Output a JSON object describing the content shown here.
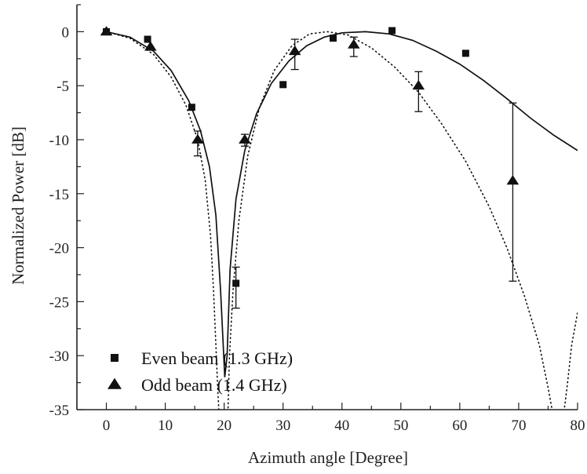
{
  "chart_data": {
    "type": "scatter",
    "xlabel": "Azimuth angle [Degree]",
    "ylabel": "Normalized Power [dB]",
    "xlim": [
      -5,
      80
    ],
    "ylim": [
      -35,
      2.5
    ],
    "xticks": [
      0,
      10,
      20,
      30,
      40,
      50,
      60,
      70,
      80
    ],
    "yticks": [
      0,
      -5,
      -10,
      -15,
      -20,
      -25,
      -30,
      -35
    ],
    "grid": false,
    "legend_position": "bottom-left",
    "legend": [
      "Even beam (1.3 GHz)",
      "Odd beam (1.4 GHz)"
    ],
    "series": [
      {
        "name": "Even beam (1.3 GHz)",
        "marker": "square",
        "points": [
          {
            "x": 0,
            "y": 0
          },
          {
            "x": 7,
            "y": -0.7
          },
          {
            "x": 14.5,
            "y": -7.0
          },
          {
            "x": 22,
            "y": -23.3,
            "err_low": -25.6,
            "err_high": -21.8
          },
          {
            "x": 30,
            "y": -4.9
          },
          {
            "x": 38.5,
            "y": -0.6
          },
          {
            "x": 48.5,
            "y": 0.1
          },
          {
            "x": 61,
            "y": -2.0
          }
        ]
      },
      {
        "name": "Odd beam (1.4 GHz)",
        "marker": "triangle",
        "points": [
          {
            "x": 0,
            "y": 0
          },
          {
            "x": 7.5,
            "y": -1.4
          },
          {
            "x": 15.5,
            "y": -10.0,
            "err_low": -11.5,
            "err_high": -9.2
          },
          {
            "x": 23.5,
            "y": -10.0,
            "err_low": -10.6,
            "err_high": -9.5
          },
          {
            "x": 32,
            "y": -1.8,
            "err_low": -3.5,
            "err_high": -0.7
          },
          {
            "x": 42,
            "y": -1.2,
            "err_low": -2.3,
            "err_high": -0.5
          },
          {
            "x": 53,
            "y": -5.0,
            "err_low": -7.4,
            "err_high": -3.7
          },
          {
            "x": 69,
            "y": -13.8,
            "err_low": -23.1,
            "err_high": -6.6
          }
        ]
      },
      {
        "name": "",
        "style": "solid",
        "points": [
          {
            "x": 0,
            "y": 0
          },
          {
            "x": 4,
            "y": -0.5
          },
          {
            "x": 8,
            "y": -1.8
          },
          {
            "x": 11,
            "y": -3.6
          },
          {
            "x": 14,
            "y": -6.4
          },
          {
            "x": 16,
            "y": -9.2
          },
          {
            "x": 17.5,
            "y": -12.5
          },
          {
            "x": 18.6,
            "y": -17.0
          },
          {
            "x": 19.4,
            "y": -24.0
          },
          {
            "x": 19.8,
            "y": -28.5
          },
          {
            "x": 20.1,
            "y": -32.0
          },
          {
            "x": 20.5,
            "y": -30.0
          },
          {
            "x": 21,
            "y": -22.0
          },
          {
            "x": 22,
            "y": -15.5
          },
          {
            "x": 23.5,
            "y": -11.0
          },
          {
            "x": 25.5,
            "y": -7.6
          },
          {
            "x": 28,
            "y": -4.8
          },
          {
            "x": 31,
            "y": -2.7
          },
          {
            "x": 34,
            "y": -1.3
          },
          {
            "x": 37,
            "y": -0.5
          },
          {
            "x": 40,
            "y": -0.1
          },
          {
            "x": 44,
            "y": 0.0
          },
          {
            "x": 48,
            "y": -0.2
          },
          {
            "x": 52,
            "y": -0.8
          },
          {
            "x": 56,
            "y": -1.8
          },
          {
            "x": 60,
            "y": -3.0
          },
          {
            "x": 64,
            "y": -4.5
          },
          {
            "x": 68,
            "y": -6.2
          },
          {
            "x": 72,
            "y": -8.0
          },
          {
            "x": 76,
            "y": -9.6
          },
          {
            "x": 80,
            "y": -11.0
          }
        ]
      },
      {
        "name": "",
        "style": "dotted",
        "points": [
          {
            "x": 0,
            "y": 0
          },
          {
            "x": 4,
            "y": -0.6
          },
          {
            "x": 8,
            "y": -2.1
          },
          {
            "x": 11,
            "y": -4.2
          },
          {
            "x": 13.5,
            "y": -6.8
          },
          {
            "x": 15.5,
            "y": -10.0
          },
          {
            "x": 16.8,
            "y": -13.8
          },
          {
            "x": 17.7,
            "y": -19.0
          },
          {
            "x": 18.2,
            "y": -24.0
          },
          {
            "x": 18.6,
            "y": -29.0
          },
          {
            "x": 18.9,
            "y": -33.0
          },
          {
            "x": 19.2,
            "y": -36.0
          },
          {
            "x": 20.6,
            "y": -36.0
          },
          {
            "x": 20.9,
            "y": -30.0
          },
          {
            "x": 21.5,
            "y": -24.0
          },
          {
            "x": 22.5,
            "y": -17.5
          },
          {
            "x": 24,
            "y": -11.5
          },
          {
            "x": 26,
            "y": -7.0
          },
          {
            "x": 28.5,
            "y": -3.6
          },
          {
            "x": 31.5,
            "y": -1.3
          },
          {
            "x": 34.5,
            "y": -0.2
          },
          {
            "x": 37.5,
            "y": 0.0
          },
          {
            "x": 41,
            "y": -0.3
          },
          {
            "x": 45,
            "y": -1.5
          },
          {
            "x": 49,
            "y": -3.3
          },
          {
            "x": 53,
            "y": -5.6
          },
          {
            "x": 57,
            "y": -8.6
          },
          {
            "x": 61,
            "y": -12.0
          },
          {
            "x": 65,
            "y": -16.2
          },
          {
            "x": 68,
            "y": -20.0
          },
          {
            "x": 71,
            "y": -24.5
          },
          {
            "x": 73.5,
            "y": -29.0
          },
          {
            "x": 75,
            "y": -33.0
          },
          {
            "x": 76,
            "y": -36.0
          },
          {
            "x": 77.5,
            "y": -36.0
          },
          {
            "x": 78.2,
            "y": -33.0
          },
          {
            "x": 79,
            "y": -29.0
          },
          {
            "x": 80,
            "y": -26.0
          }
        ]
      }
    ]
  }
}
